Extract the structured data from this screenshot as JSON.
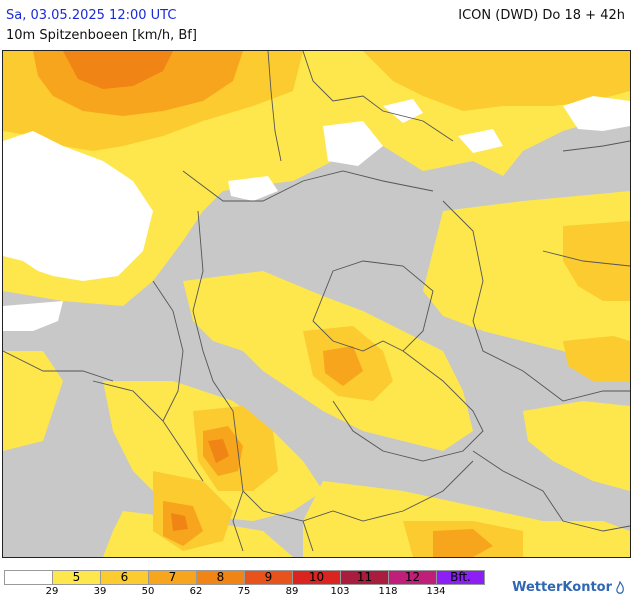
{
  "header": {
    "date_time": "Sa, 03.05.2025 12:00 UTC",
    "parameter": "10m Spitzenboeen [km/h, Bf]",
    "model_run": "ICON (DWD) Do 18 + 42h"
  },
  "legend": {
    "swatches": [
      {
        "label": "",
        "color": "#ffffff"
      },
      {
        "label": "5",
        "color": "#fde74c"
      },
      {
        "label": "6",
        "color": "#fccb30"
      },
      {
        "label": "7",
        "color": "#f7a51c"
      },
      {
        "label": "8",
        "color": "#f08414"
      },
      {
        "label": "9",
        "color": "#e8531c"
      },
      {
        "label": "10",
        "color": "#d9241f"
      },
      {
        "label": "11",
        "color": "#a81c3d"
      },
      {
        "label": "12",
        "color": "#bf1f78"
      },
      {
        "label": "Bft.",
        "color": "#8b1ff5"
      }
    ],
    "ticks": [
      "29",
      "39",
      "50",
      "62",
      "75",
      "89",
      "103",
      "118",
      "134"
    ]
  },
  "logo": {
    "text": "WetterKontor"
  },
  "colors": {
    "land_calm": "#c8c8c8",
    "water_calm": "#ffffff",
    "bft5": "#fde74c",
    "bft6": "#fccb30",
    "bft7": "#f7a51c",
    "bft8": "#f08414",
    "border": "#666666"
  }
}
